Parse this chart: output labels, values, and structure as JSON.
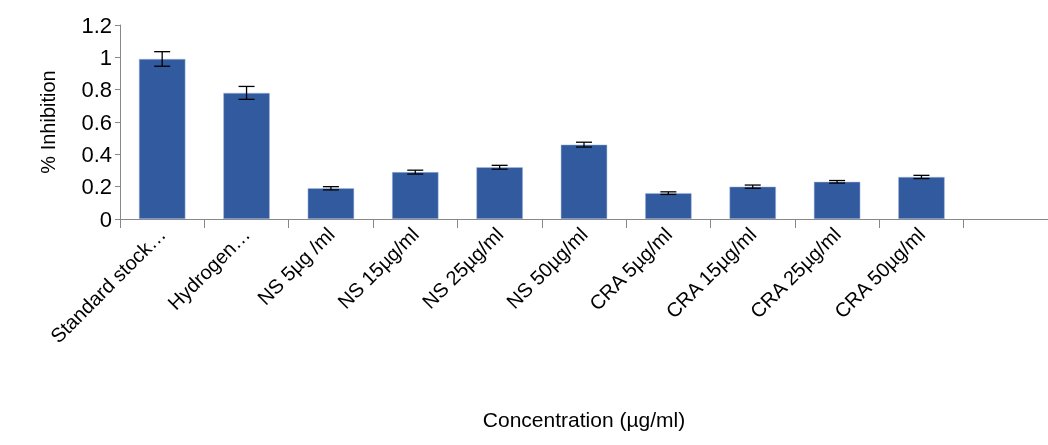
{
  "chart_data": {
    "type": "bar",
    "xlabel": "Concentration (µg/ml)",
    "ylabel": "% Inhibition",
    "categories": [
      "Standard stock…",
      "Hydrogen…",
      "NS 5µg /ml",
      "NS 15µg/ml",
      "NS 25µg/ml",
      "NS 50µg/ml",
      "CRA 5µg/ml",
      "CRA 15µg/ml",
      "CRA 25µg/ml",
      "CRA 50µg/ml",
      null
    ],
    "values": [
      0.99,
      0.78,
      0.19,
      0.29,
      0.32,
      0.46,
      0.16,
      0.2,
      0.23,
      0.26,
      null
    ],
    "errors": [
      0.045,
      0.04,
      0.01,
      0.012,
      0.012,
      0.015,
      0.008,
      0.01,
      0.008,
      0.01,
      null
    ],
    "color": "#325a9f",
    "ylim": [
      0,
      1.2
    ],
    "yticks": [
      0,
      0.2,
      0.4,
      0.6,
      0.8,
      1,
      1.2
    ],
    "grid": false
  }
}
